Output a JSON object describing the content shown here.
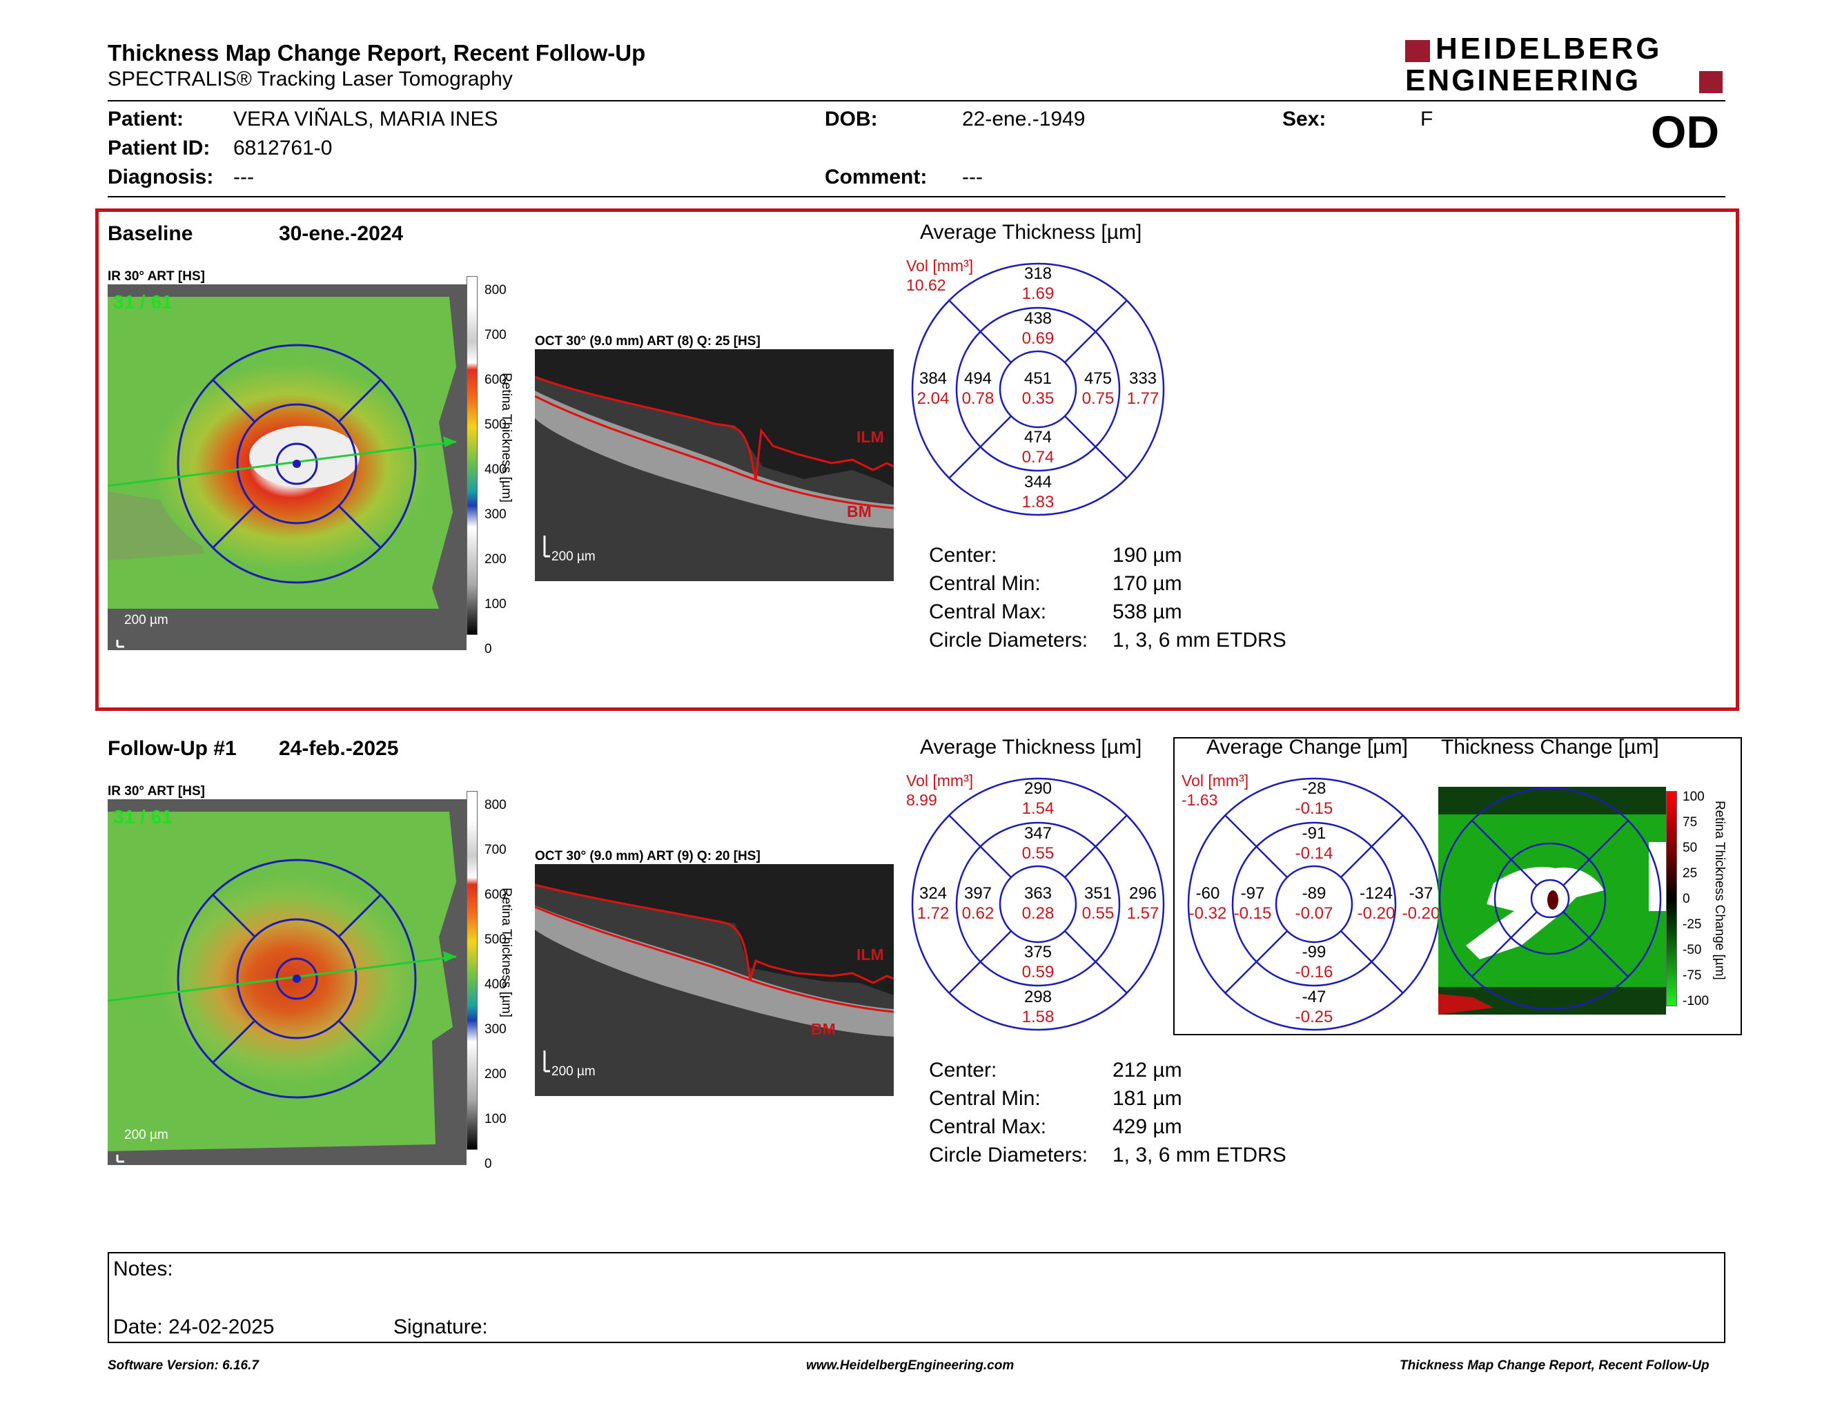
{
  "header": {
    "title": "Thickness Map Change Report, Recent Follow-Up",
    "subtitle": "SPECTRALIS® Tracking Laser Tomography",
    "brand_line1": "HEIDELBERG",
    "brand_line2": "ENGINEERING",
    "eye": "OD"
  },
  "patient": {
    "patient_label": "Patient:",
    "patient_value": "VERA VIÑALS, MARIA INES",
    "dob_label": "DOB:",
    "dob_value": "22-ene.-1949",
    "sex_label": "Sex:",
    "sex_value": "F",
    "id_label": "Patient ID:",
    "id_value": "6812761-0",
    "diag_label": "Diagnosis:",
    "diag_value": "---",
    "comment_label": "Comment:",
    "comment_value": "---"
  },
  "baseline": {
    "label": "Baseline",
    "date": "30-ene.-2024",
    "ir_label": "IR 30° ART [HS]",
    "frame": "31 / 61",
    "scale": "200 µm",
    "colorbar_ticks": [
      "800",
      "700",
      "600",
      "500",
      "400",
      "300",
      "200",
      "100",
      "0"
    ],
    "colorbar_title": "Retina Thickness [µm]",
    "oct_label": "OCT 30° (9.0 mm) ART (8) Q: 25 [HS]",
    "oct_scale": "200 µm",
    "ilm": "ILM",
    "bm": "BM",
    "avg_title": "Average Thickness [µm]",
    "vol_label": "Vol [mm³]",
    "vol_total": "10.62",
    "etdrs": {
      "outer_top": [
        "318",
        "1.69"
      ],
      "inner_top": [
        "438",
        "0.69"
      ],
      "outer_left": [
        "384",
        "2.04"
      ],
      "inner_left": [
        "494",
        "0.78"
      ],
      "center": [
        "451",
        "0.35"
      ],
      "inner_right": [
        "475",
        "0.75"
      ],
      "outer_right": [
        "333",
        "1.77"
      ],
      "inner_bottom": [
        "474",
        "0.74"
      ],
      "outer_bottom": [
        "344",
        "1.83"
      ]
    },
    "stats": [
      {
        "label": "Center:",
        "value": "190 µm"
      },
      {
        "label": "Central Min:",
        "value": "170 µm"
      },
      {
        "label": "Central Max:",
        "value": "538 µm"
      },
      {
        "label": "Circle Diameters:",
        "value": "1, 3, 6 mm ETDRS"
      }
    ]
  },
  "followup": {
    "label": "Follow-Up #1",
    "date": "24-feb.-2025",
    "ir_label": "IR 30° ART [HS]",
    "frame": "31 / 61",
    "scale": "200 µm",
    "colorbar_ticks": [
      "800",
      "700",
      "600",
      "500",
      "400",
      "300",
      "200",
      "100",
      "0"
    ],
    "colorbar_title": "Retina Thickness [µm]",
    "oct_label": "OCT 30° (9.0 mm) ART (9) Q: 20 [HS]",
    "oct_scale": "200 µm",
    "ilm": "ILM",
    "bm": "BM",
    "avg_title": "Average Thickness [µm]",
    "vol_label": "Vol [mm³]",
    "vol_total": "8.99",
    "etdrs": {
      "outer_top": [
        "290",
        "1.54"
      ],
      "inner_top": [
        "347",
        "0.55"
      ],
      "outer_left": [
        "324",
        "1.72"
      ],
      "inner_left": [
        "397",
        "0.62"
      ],
      "center": [
        "363",
        "0.28"
      ],
      "inner_right": [
        "351",
        "0.55"
      ],
      "outer_right": [
        "296",
        "1.57"
      ],
      "inner_bottom": [
        "375",
        "0.59"
      ],
      "outer_bottom": [
        "298",
        "1.58"
      ]
    },
    "stats": [
      {
        "label": "Center:",
        "value": "212 µm"
      },
      {
        "label": "Central Min:",
        "value": "181 µm"
      },
      {
        "label": "Central Max:",
        "value": "429 µm"
      },
      {
        "label": "Circle Diameters:",
        "value": "1, 3, 6 mm ETDRS"
      }
    ]
  },
  "change": {
    "avg_title": "Average Change [µm]",
    "map_title": "Thickness Change [µm]",
    "vol_label": "Vol [mm³]",
    "vol_total": "-1.63",
    "etdrs": {
      "outer_top": [
        "-28",
        "-0.15"
      ],
      "inner_top": [
        "-91",
        "-0.14"
      ],
      "outer_left": [
        "-60",
        "-0.32"
      ],
      "inner_left": [
        "-97",
        "-0.15"
      ],
      "center": [
        "-89",
        "-0.07"
      ],
      "inner_right": [
        "-124",
        "-0.20"
      ],
      "outer_right": [
        "-37",
        "-0.20"
      ],
      "inner_bottom": [
        "-99",
        "-0.16"
      ],
      "outer_bottom": [
        "-47",
        "-0.25"
      ]
    },
    "colorbar_ticks": [
      "100",
      "75",
      "50",
      "25",
      "0",
      "-25",
      "-50",
      "-75",
      "-100"
    ],
    "colorbar_title": "Retina Thickness Change [µm]"
  },
  "notes": {
    "label": "Notes:",
    "date": "Date: 24-02-2025",
    "signature": "Signature:"
  },
  "footer": {
    "left": "Software Version: 6.16.7",
    "center": "www.HeidelbergEngineering.com",
    "right": "Thickness Map Change Report, Recent Follow-Up"
  },
  "colors": {
    "accent_red": "#c0141c",
    "ring_blue": "#1c1cb4",
    "brand_red": "#9a1b2f"
  }
}
